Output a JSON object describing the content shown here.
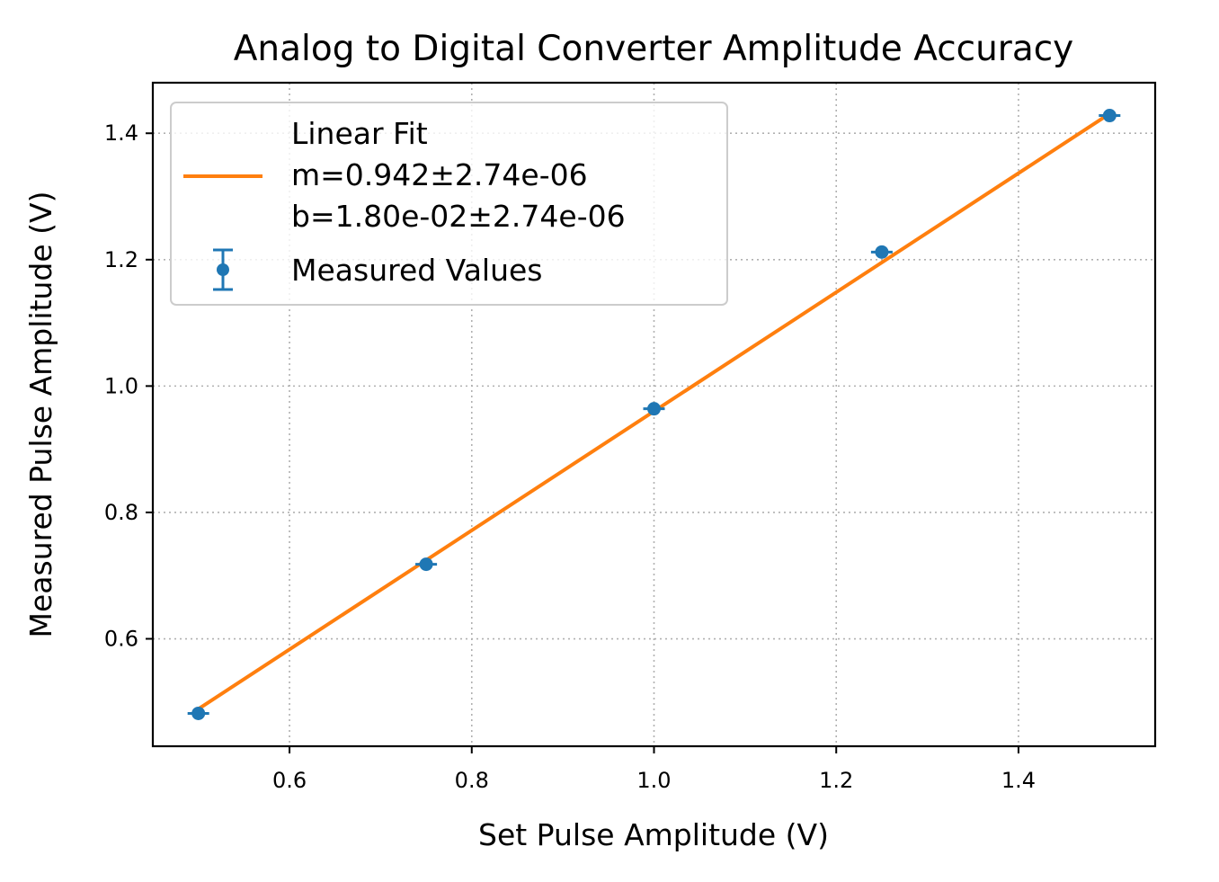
{
  "chart_data": {
    "type": "scatter",
    "title": "Analog to Digital Converter Amplitude Accuracy",
    "xlabel": "Set Pulse Amplitude (V)",
    "ylabel": "Measured Pulse Amplitude (V)",
    "xlim": [
      0.45,
      1.55
    ],
    "ylim": [
      0.43,
      1.48
    ],
    "xticks": [
      "0.6",
      "0.8",
      "1.0",
      "1.2",
      "1.4"
    ],
    "yticks": [
      "0.6",
      "0.8",
      "1.0",
      "1.2",
      "1.4"
    ],
    "grid": true,
    "legend_position": "upper-left",
    "series": [
      {
        "name": "Measured Values",
        "kind": "errorbar",
        "color": "#1f77b4",
        "x": [
          0.5,
          0.75,
          1.0,
          1.25,
          1.5
        ],
        "y": [
          0.482,
          0.718,
          0.964,
          1.212,
          1.428
        ]
      },
      {
        "name": "Linear Fit",
        "kind": "line",
        "color": "#ff7f0e",
        "x": [
          0.5,
          1.5
        ],
        "y": [
          0.489,
          1.431
        ]
      }
    ],
    "legend": {
      "fit_lines": [
        "Linear Fit",
        "m=0.942±2.74e-06",
        "b=1.80e-02±2.74e-06"
      ],
      "data_label": "Measured Values"
    }
  }
}
